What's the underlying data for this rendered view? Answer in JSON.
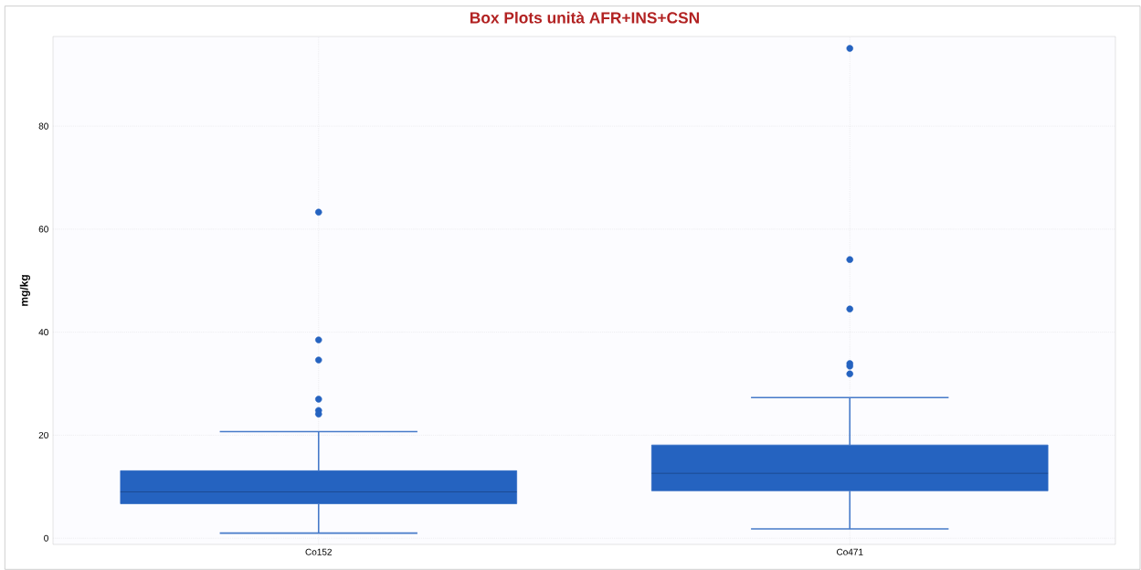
{
  "chart_data": {
    "type": "box",
    "title": "Box Plots unità AFR+INS+CSN",
    "ylabel": "mg/kg",
    "categories": [
      "Co152",
      "Co471"
    ],
    "color": "#2563c0",
    "boxes": [
      {
        "low": 1.0,
        "q1": 6.7,
        "median": 9.0,
        "q3": 13.1,
        "high": 20.7,
        "outliers": [
          63.3,
          38.5,
          34.6,
          27.0,
          24.8,
          24.1
        ]
      },
      {
        "low": 1.8,
        "q1": 9.2,
        "median": 12.6,
        "q3": 18.1,
        "high": 27.3,
        "outliers": [
          95.1,
          54.1,
          44.5,
          33.9,
          33.4,
          31.9
        ]
      }
    ],
    "ylim": [
      -1.2,
      97.4
    ],
    "yticks": [
      0,
      20,
      40,
      60,
      80
    ],
    "grid": true,
    "marker": "circle"
  }
}
